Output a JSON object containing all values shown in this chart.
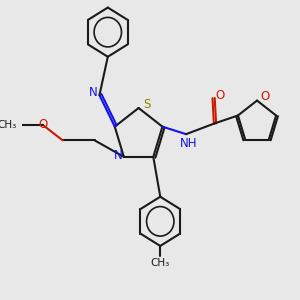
{
  "bg_color": "#e8e8e8",
  "bond_color": "#1a1a1a",
  "N_color": "#1414e6",
  "O_color": "#cc1a00",
  "S_color": "#888800",
  "NH_color": "#1414e6",
  "lw": 1.5,
  "xlim": [
    0,
    10
  ],
  "ylim": [
    0,
    10
  ]
}
